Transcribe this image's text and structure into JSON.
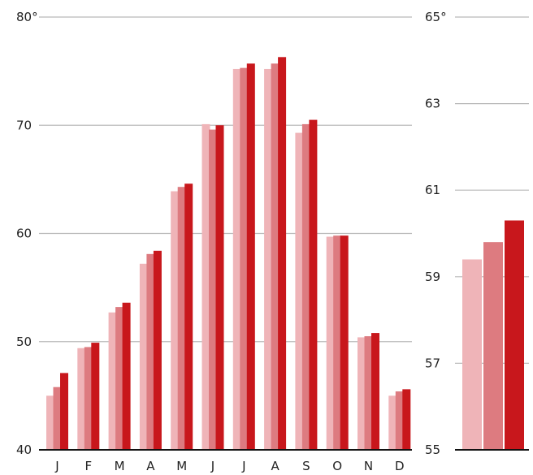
{
  "chart_data": [
    {
      "type": "bar",
      "categories": [
        "J",
        "F",
        "M",
        "A",
        "M",
        "J",
        "J",
        "A",
        "S",
        "O",
        "N",
        "D"
      ],
      "series": [
        {
          "values": [
            45.0,
            49.4,
            52.7,
            57.2,
            63.9,
            70.1,
            75.2,
            75.2,
            69.3,
            59.7,
            50.4,
            45.0
          ]
        },
        {
          "values": [
            45.8,
            49.5,
            53.2,
            58.1,
            64.3,
            69.6,
            75.3,
            75.7,
            70.1,
            59.8,
            50.5,
            45.4
          ]
        },
        {
          "values": [
            47.1,
            49.9,
            53.6,
            58.4,
            64.6,
            70.0,
            75.7,
            76.3,
            70.5,
            59.8,
            50.8,
            45.6
          ]
        }
      ],
      "ylim": [
        40,
        80
      ],
      "yticks": [
        "40",
        "50",
        "60",
        "70",
        "80°"
      ],
      "grid": true,
      "colors": [
        "#efb4b8",
        "#dd7b80",
        "#c8171c"
      ]
    },
    {
      "type": "bar",
      "categories": [
        ""
      ],
      "series": [
        {
          "values": [
            59.4
          ]
        },
        {
          "values": [
            59.8
          ]
        },
        {
          "values": [
            60.3
          ]
        }
      ],
      "ylim": [
        55,
        65
      ],
      "yticks": [
        "55",
        "57",
        "59",
        "61",
        "63",
        "65°"
      ],
      "grid": true,
      "colors": [
        "#efb4b8",
        "#dd7b80",
        "#c8171c"
      ]
    }
  ]
}
